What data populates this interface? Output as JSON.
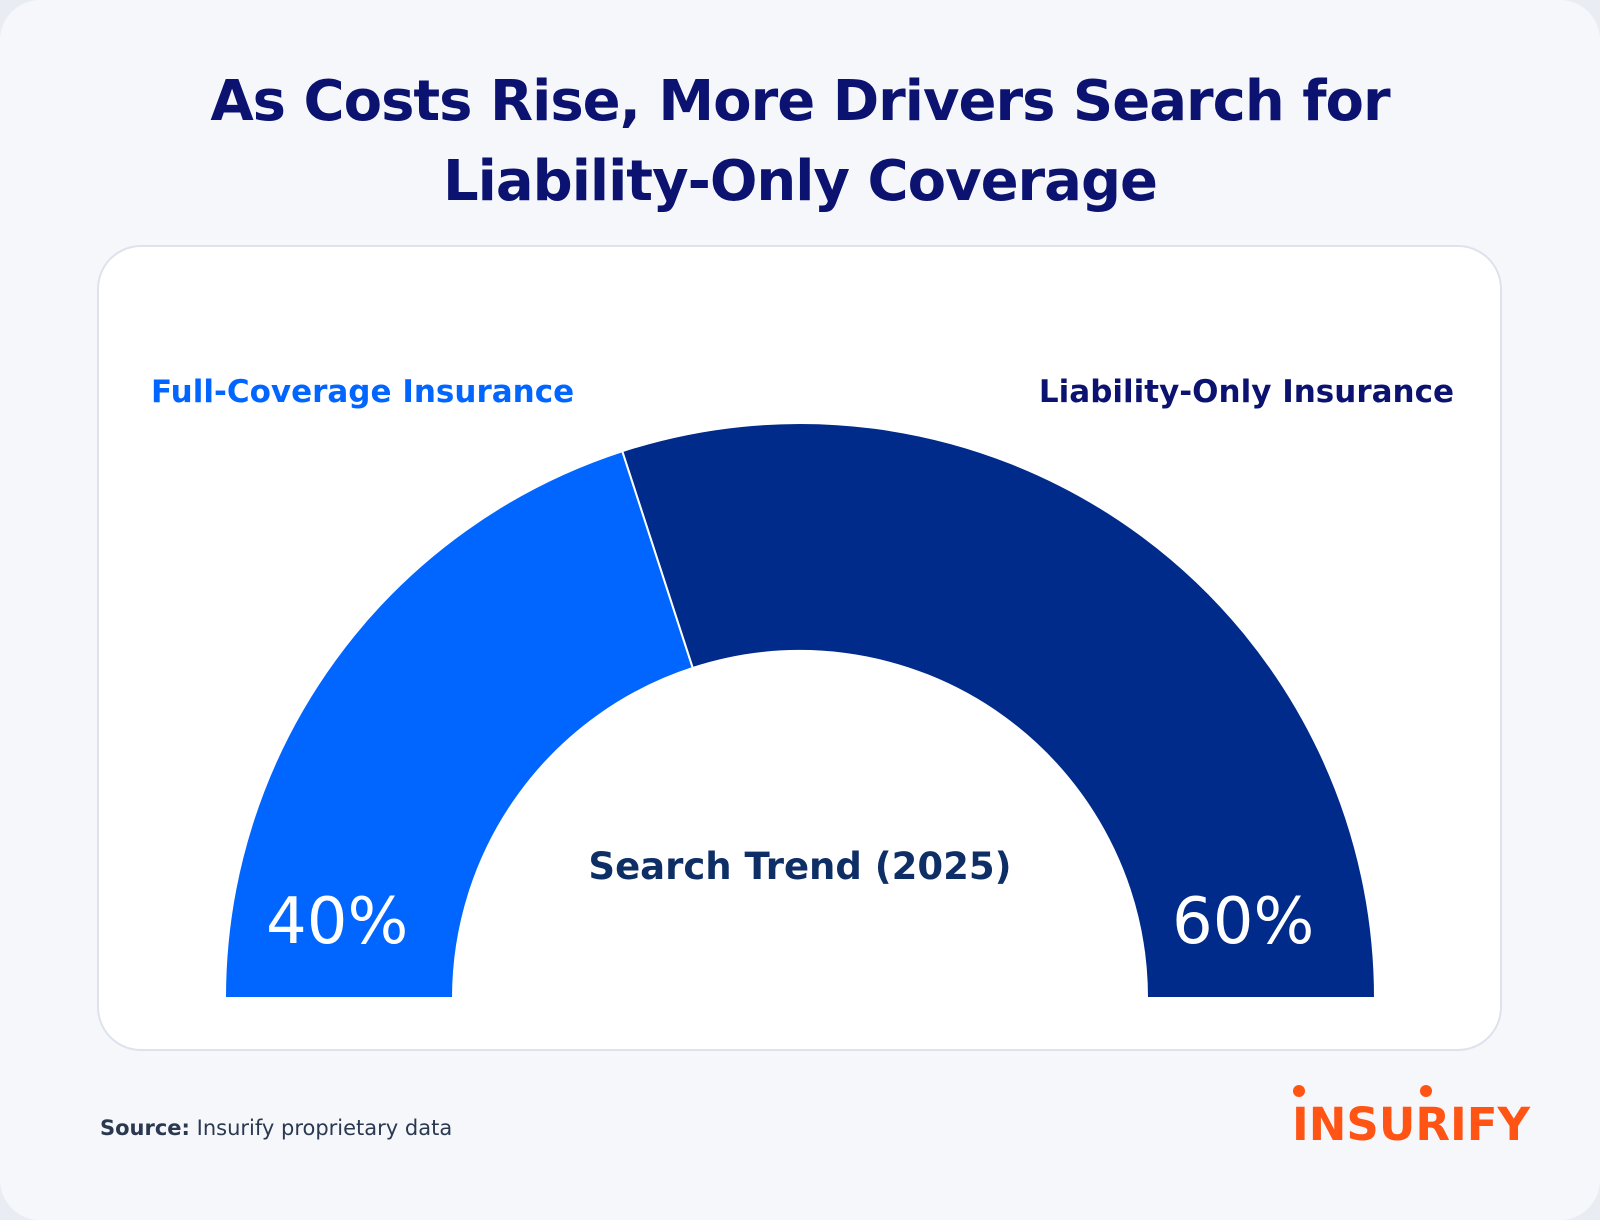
{
  "chart_data": {
    "type": "pie",
    "variant": "semicircle-gauge",
    "title": "As Costs Rise, More Drivers Search for Liability-Only Coverage",
    "title_lines": [
      "As Costs Rise, More Drivers Search for",
      "Liability-Only Coverage"
    ],
    "center_label": "Search Trend (2025)",
    "slices": [
      {
        "name": "Full-Coverage Insurance",
        "value": 40,
        "label": "40%",
        "color": "#0066ff"
      },
      {
        "name": "Liability-Only Insurance",
        "value": 60,
        "label": "60%",
        "color": "#002b8a"
      }
    ]
  },
  "footer": {
    "source_label": "Source:",
    "source_text": "Insurify proprietary data"
  },
  "logo": {
    "text": "INSURIFY",
    "color": "#ff5413"
  }
}
